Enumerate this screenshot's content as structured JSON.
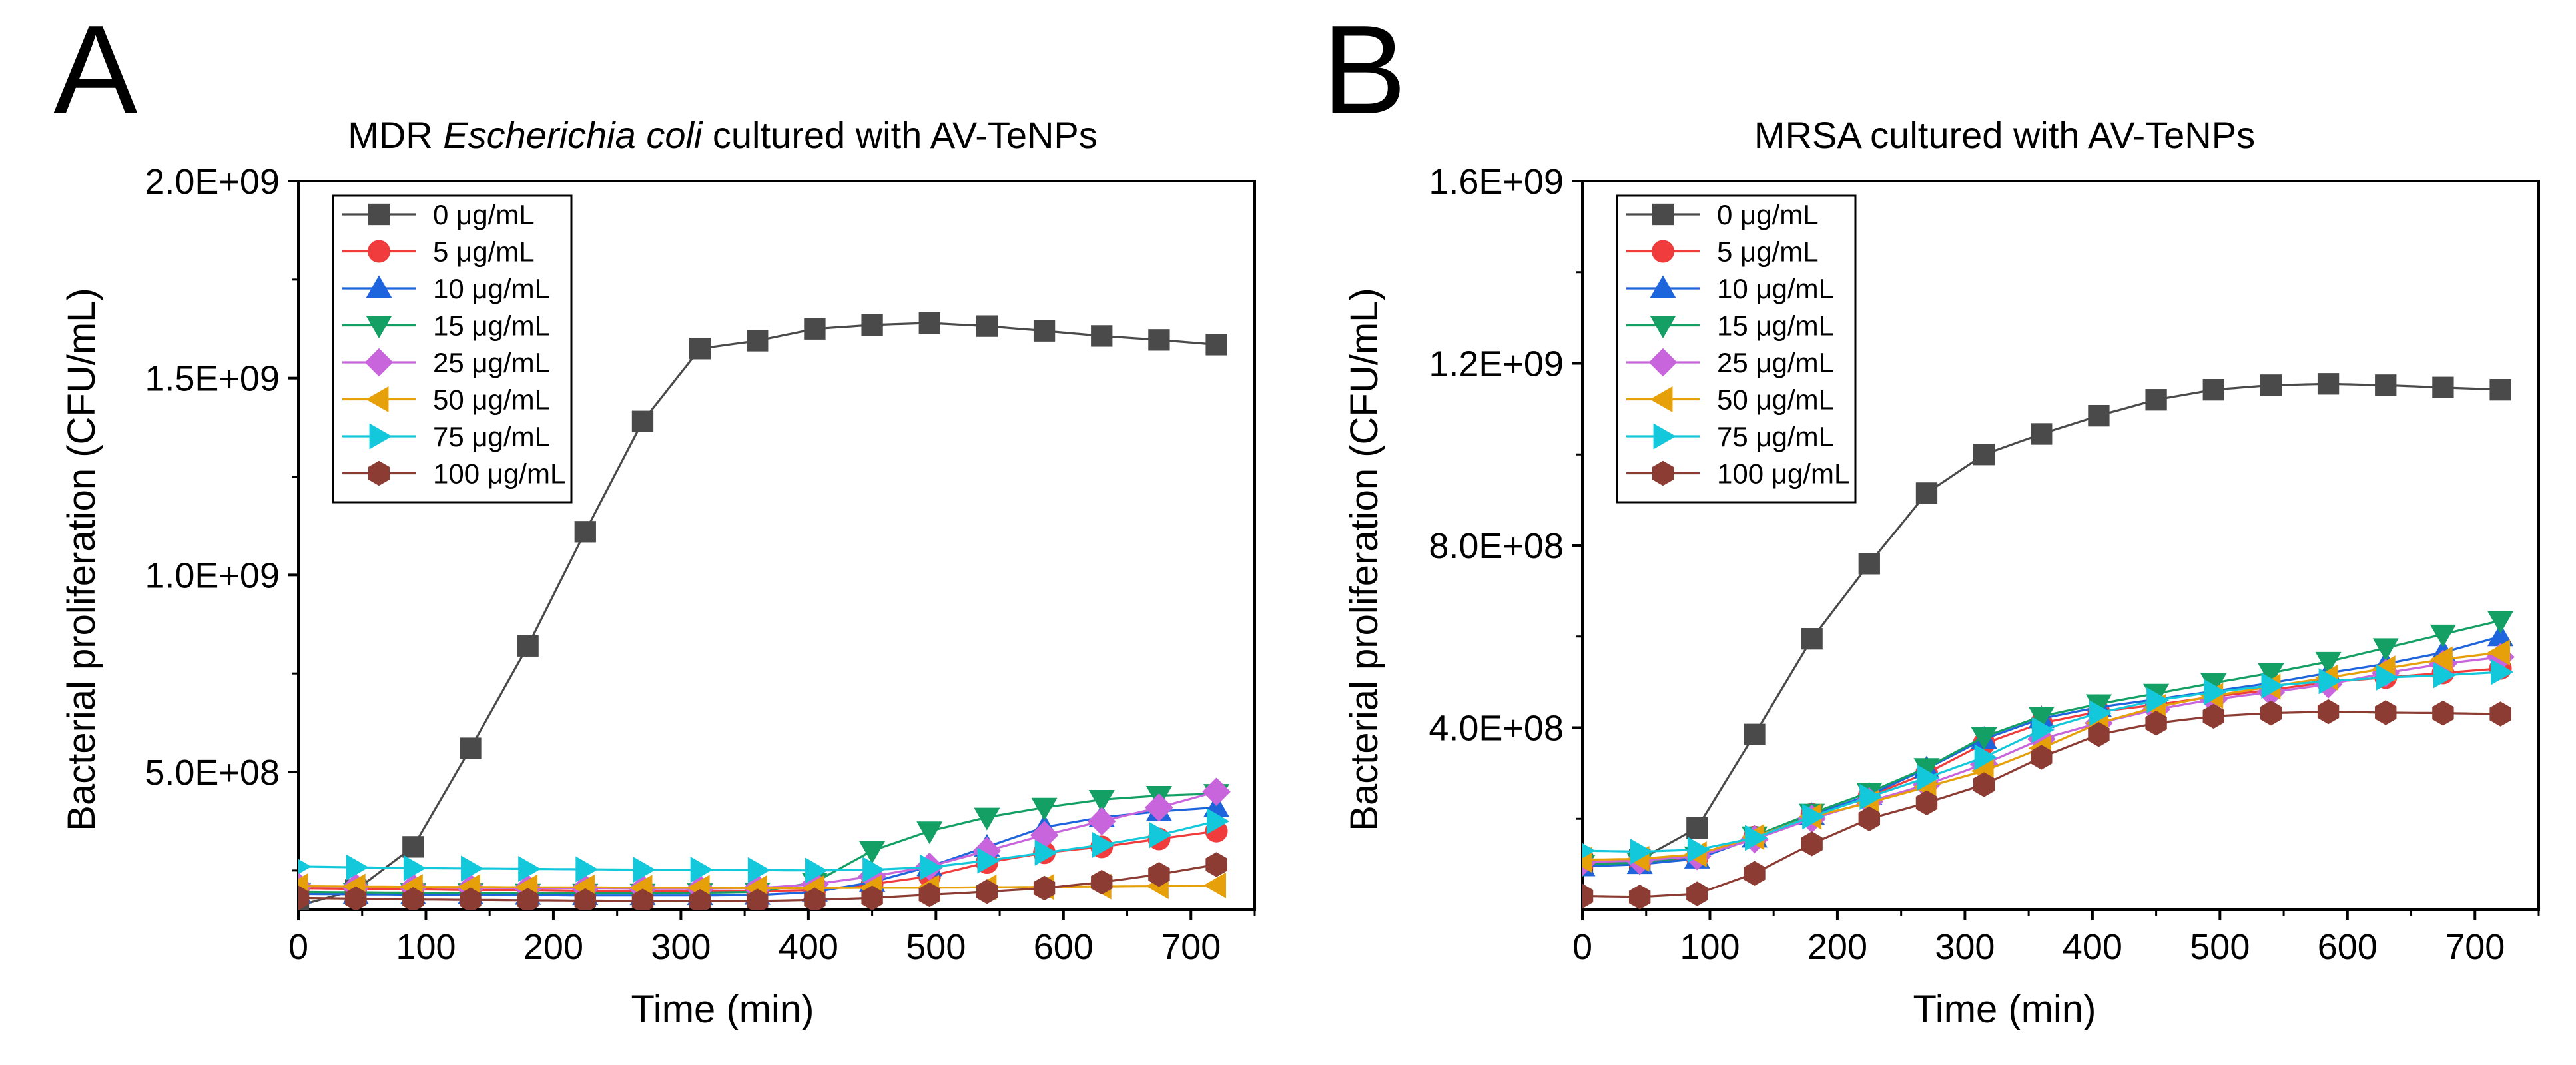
{
  "figure": {
    "panel_labels": [
      "A",
      "B"
    ]
  },
  "chart_data": [
    {
      "type": "line",
      "panel": "A",
      "title_prefix": "MDR ",
      "title_italic": "Escherichia coli",
      "title_suffix": " cultured with AV-TeNPs",
      "xlabel": "Time (min)",
      "ylabel": "Bacterial proliferation (CFU/mL)",
      "xlim": [
        0,
        750
      ],
      "ylim": [
        150000000,
        2000000000
      ],
      "xticks": [
        0,
        100,
        200,
        300,
        400,
        500,
        600,
        700
      ],
      "xtick_labels": [
        "0",
        "100",
        "200",
        "300",
        "400",
        "500",
        "600",
        "700"
      ],
      "yticks": [
        500000000,
        1000000000,
        1500000000,
        2000000000
      ],
      "ytick_labels": [
        "5.0E+08",
        "1.0E+09",
        "1.5E+09",
        "2.0E+09"
      ],
      "legend_position": "top-left",
      "x": [
        0,
        45,
        90,
        135,
        180,
        225,
        270,
        315,
        360,
        405,
        450,
        495,
        540,
        585,
        630,
        675,
        720
      ],
      "series": [
        {
          "name": "0 μg/mL",
          "color": "#4a4a4a",
          "marker": "square",
          "values": [
            160000000,
            200000000,
            310000000,
            560000000,
            820000000,
            1110000000,
            1390000000,
            1575000000,
            1595000000,
            1625000000,
            1635000000,
            1640000000,
            1632000000,
            1620000000,
            1607000000,
            1597000000,
            1585000000
          ]
        },
        {
          "name": "5 μg/mL",
          "color": "#f03c3c",
          "marker": "circle",
          "values": [
            205000000,
            203000000,
            202000000,
            200000000,
            200000000,
            198000000,
            198000000,
            197000000,
            197000000,
            200000000,
            215000000,
            235000000,
            270000000,
            295000000,
            310000000,
            330000000,
            350000000
          ]
        },
        {
          "name": "10 μg/mL",
          "color": "#1e64dc",
          "marker": "triangle-up",
          "values": [
            190000000,
            189000000,
            188000000,
            188000000,
            187000000,
            186000000,
            186000000,
            186000000,
            187000000,
            195000000,
            220000000,
            260000000,
            310000000,
            360000000,
            385000000,
            400000000,
            410000000
          ]
        },
        {
          "name": "15 μg/mL",
          "color": "#14a064",
          "marker": "triangle-down",
          "values": [
            195000000,
            194000000,
            193000000,
            193000000,
            192000000,
            192000000,
            192000000,
            193000000,
            195000000,
            220000000,
            300000000,
            350000000,
            385000000,
            410000000,
            430000000,
            440000000,
            445000000
          ]
        },
        {
          "name": "25 μg/mL",
          "color": "#c864dc",
          "marker": "diamond",
          "values": [
            210000000,
            208000000,
            207000000,
            206000000,
            205000000,
            205000000,
            204000000,
            204000000,
            205000000,
            215000000,
            235000000,
            260000000,
            300000000,
            340000000,
            375000000,
            410000000,
            450000000
          ]
        },
        {
          "name": "50 μg/mL",
          "color": "#e6a00a",
          "marker": "triangle-left",
          "values": [
            210000000,
            209000000,
            208000000,
            208000000,
            207000000,
            207000000,
            206000000,
            206000000,
            205000000,
            205000000,
            206000000,
            206000000,
            207000000,
            208000000,
            209000000,
            210000000,
            212000000
          ]
        },
        {
          "name": "75 μg/mL",
          "color": "#14c8dc",
          "marker": "triangle-right",
          "values": [
            260000000,
            258000000,
            256000000,
            255000000,
            254000000,
            253000000,
            252000000,
            252000000,
            251000000,
            250000000,
            252000000,
            258000000,
            275000000,
            295000000,
            315000000,
            340000000,
            375000000
          ]
        },
        {
          "name": "100 μg/mL",
          "color": "#8c3c32",
          "marker": "hexagon",
          "values": [
            180000000,
            178000000,
            176000000,
            175000000,
            174000000,
            173000000,
            172000000,
            171000000,
            172000000,
            175000000,
            180000000,
            188000000,
            196000000,
            205000000,
            220000000,
            240000000,
            265000000
          ]
        }
      ]
    },
    {
      "type": "line",
      "panel": "B",
      "title": "MRSA cultured with AV-TeNPs",
      "xlabel": "Time (min)",
      "ylabel": "Bacterial proliferation (CFU/mL)",
      "xlim": [
        0,
        750
      ],
      "ylim": [
        0,
        1600000000
      ],
      "xticks": [
        0,
        100,
        200,
        300,
        400,
        500,
        600,
        700
      ],
      "xtick_labels": [
        "0",
        "100",
        "200",
        "300",
        "400",
        "500",
        "600",
        "700"
      ],
      "yticks": [
        400000000,
        800000000,
        1200000000,
        1600000000
      ],
      "ytick_labels": [
        "4.0E+08",
        "8.0E+08",
        "1.2E+09",
        "1.6E+09"
      ],
      "legend_position": "top-left",
      "x": [
        0,
        45,
        90,
        135,
        180,
        225,
        270,
        315,
        360,
        405,
        450,
        495,
        540,
        585,
        630,
        675,
        720
      ],
      "series": [
        {
          "name": "0 μg/mL",
          "color": "#4a4a4a",
          "marker": "square",
          "values": [
            100000000,
            110000000,
            180000000,
            385000000,
            595000000,
            760000000,
            915000000,
            1000000000,
            1045000000,
            1085000000,
            1120000000,
            1142000000,
            1152000000,
            1155000000,
            1152000000,
            1147000000,
            1142000000
          ]
        },
        {
          "name": "5 μg/mL",
          "color": "#f03c3c",
          "marker": "circle",
          "values": [
            100000000,
            104000000,
            115000000,
            160000000,
            210000000,
            250000000,
            300000000,
            365000000,
            410000000,
            435000000,
            450000000,
            468000000,
            483000000,
            500000000,
            510000000,
            520000000,
            530000000
          ]
        },
        {
          "name": "10 μg/mL",
          "color": "#1e64dc",
          "marker": "triangle-up",
          "values": [
            95000000,
            100000000,
            112000000,
            158000000,
            208000000,
            252000000,
            310000000,
            375000000,
            420000000,
            445000000,
            462000000,
            480000000,
            498000000,
            520000000,
            540000000,
            565000000,
            600000000
          ]
        },
        {
          "name": "15 μg/mL",
          "color": "#14a064",
          "marker": "triangle-down",
          "values": [
            100000000,
            104000000,
            118000000,
            162000000,
            212000000,
            258000000,
            312000000,
            380000000,
            425000000,
            452000000,
            475000000,
            498000000,
            520000000,
            545000000,
            575000000,
            605000000,
            635000000
          ]
        },
        {
          "name": "25 μg/mL",
          "color": "#c864dc",
          "marker": "diamond",
          "values": [
            105000000,
            108000000,
            118000000,
            155000000,
            200000000,
            238000000,
            275000000,
            320000000,
            375000000,
            410000000,
            440000000,
            462000000,
            478000000,
            495000000,
            520000000,
            540000000,
            555000000
          ]
        },
        {
          "name": "50 μg/mL",
          "color": "#e6a00a",
          "marker": "triangle-left",
          "values": [
            110000000,
            112000000,
            122000000,
            160000000,
            205000000,
            235000000,
            270000000,
            305000000,
            355000000,
            410000000,
            445000000,
            470000000,
            490000000,
            510000000,
            530000000,
            550000000,
            565000000
          ]
        },
        {
          "name": "75 μg/mL",
          "color": "#14c8dc",
          "marker": "triangle-right",
          "values": [
            130000000,
            128000000,
            132000000,
            158000000,
            205000000,
            248000000,
            290000000,
            335000000,
            395000000,
            432000000,
            460000000,
            478000000,
            492000000,
            502000000,
            510000000,
            515000000,
            522000000
          ]
        },
        {
          "name": "100 μg/mL",
          "color": "#8c3c32",
          "marker": "hexagon",
          "values": [
            30000000,
            28000000,
            35000000,
            80000000,
            145000000,
            200000000,
            235000000,
            275000000,
            335000000,
            385000000,
            410000000,
            425000000,
            432000000,
            435000000,
            433000000,
            432000000,
            430000000
          ]
        }
      ]
    }
  ]
}
